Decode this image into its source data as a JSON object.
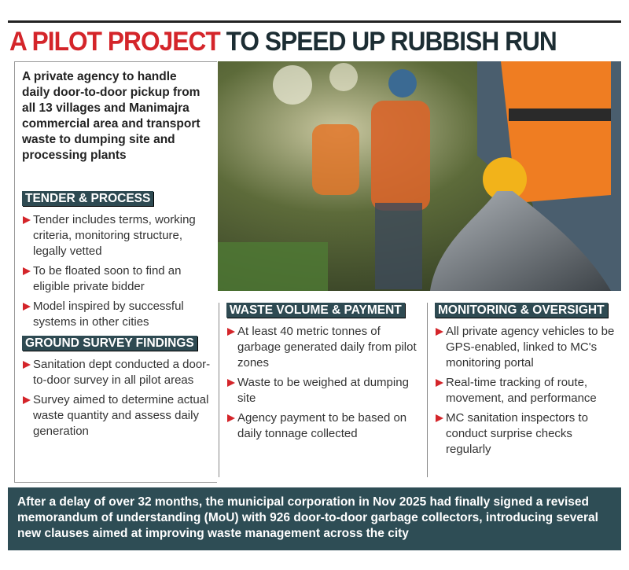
{
  "header": {
    "title_highlight": "A PILOT PROJECT",
    "title_rest": "TO SPEED UP RUBBISH RUN"
  },
  "intro": "A private agency to handle daily door-to-door pickup from all 13 villages and Manimajra commercial area and transport waste to dumping site and processing plants",
  "sections": [
    {
      "heading": "TENDER & PROCESS",
      "bullets": [
        "Tender includes terms, working criteria, monitoring structure, legally vetted",
        "To be floated soon to find an eligible private bidder",
        "Model inspired by successful systems in other cities"
      ]
    },
    {
      "heading": "GROUND SURVEY FINDINGS",
      "bullets": [
        "Sanitation dept conducted a door-to-door survey in all pilot areas",
        "Survey aimed to determine actual waste quantity and assess daily generation"
      ]
    },
    {
      "heading": "WASTE VOLUME & PAYMENT",
      "bullets": [
        "At least 40 metric tonnes of garbage generated daily from pilot zones",
        "Waste to be weighed at dumping site",
        "Agency payment to be based on daily tonnage collected"
      ]
    },
    {
      "heading": "MONITORING & OVERSIGHT",
      "bullets": [
        "All private agency vehicles to be GPS-enabled, linked to MC's monitoring portal",
        "Real-time tracking of route, movement, and performance",
        "MC sanitation inspectors to conduct surprise checks regularly"
      ]
    }
  ],
  "footer": "After a delay of over 32 months, the municipal corporation in Nov 2025 had finally signed a revised memorandum of understanding (MoU) with 926 door-to-door garbage collectors, introducing several new clauses aimed at improving waste management across the city"
}
